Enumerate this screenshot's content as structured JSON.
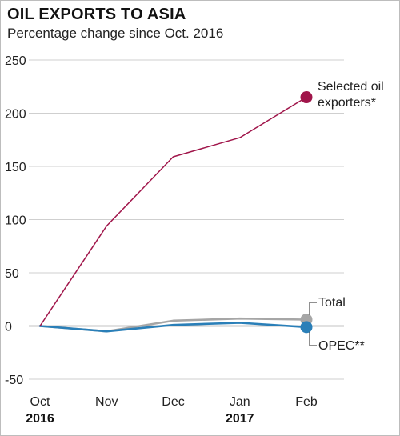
{
  "title": "OIL EXPORTS TO ASIA",
  "subtitle": "Percentage change since Oct. 2016",
  "chart_data": {
    "type": "line",
    "x": [
      "Oct",
      "Nov",
      "Dec",
      "Jan",
      "Feb"
    ],
    "year_labels": [
      {
        "category": "Oct",
        "label": "2016"
      },
      {
        "category": "Jan",
        "label": "2017"
      }
    ],
    "ylim": [
      -50,
      250
    ],
    "yticks": [
      -50,
      0,
      50,
      100,
      150,
      200,
      250
    ],
    "grid": true,
    "series": [
      {
        "name": "Selected oil exporters*",
        "label_lines": [
          "Selected oil",
          "exporters*"
        ],
        "color": "#a0154a",
        "values": [
          0,
          94,
          159,
          177,
          215
        ]
      },
      {
        "name": "Total",
        "label_lines": [
          "Total"
        ],
        "color": "#a6a6a6",
        "values": [
          0,
          -5,
          5,
          7,
          6
        ]
      },
      {
        "name": "OPEC**",
        "label_lines": [
          "OPEC**"
        ],
        "color": "#2a7fb8",
        "values": [
          0,
          -5,
          1,
          3,
          -1
        ]
      }
    ]
  }
}
